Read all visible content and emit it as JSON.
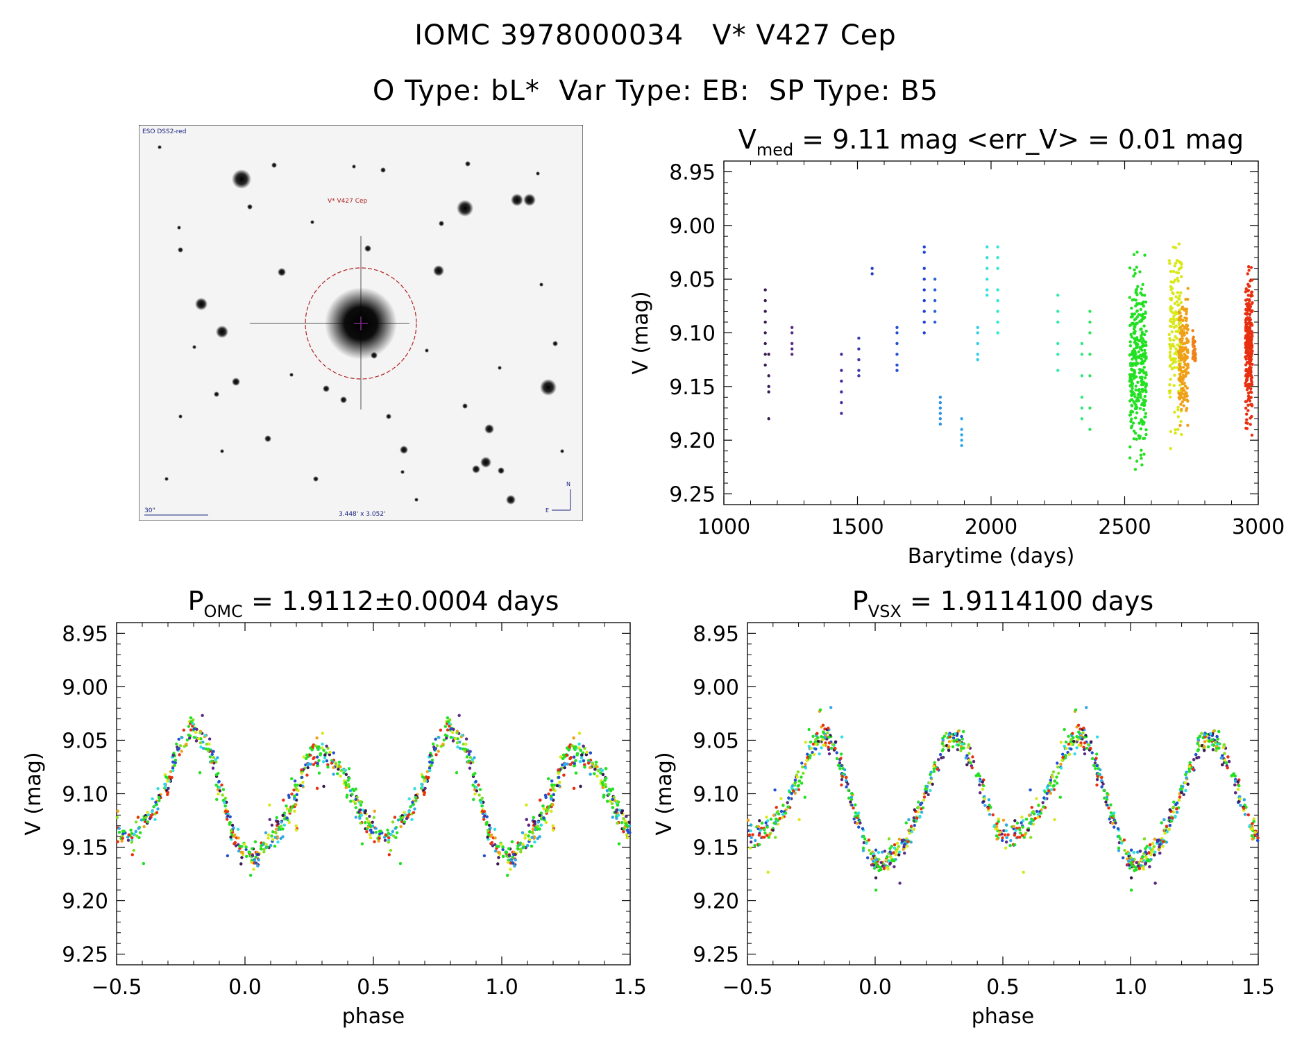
{
  "header": {
    "title_line1": "IOMC 3978000034   V* V427 Cep",
    "title_line2": "O Type: bL*  Var Type: EB:  SP Type: B5"
  },
  "sky_image": {
    "survey_label": "ESO DSS2-red",
    "target_label": "V* V427 Cep",
    "scale_label": "30\"",
    "size_label": "3.448' x 3.052'",
    "north_label": "N",
    "east_label": "E"
  },
  "chart_data": [
    {
      "type": "scatter",
      "id": "lightcurve",
      "title": "V_med = 9.11 mag <err_V> = 0.01 mag",
      "title_parts": {
        "main": "V",
        "sub": "med",
        "rest": " = 9.11 mag <err_V> = 0.01 mag"
      },
      "xlabel": "Barytime (days)",
      "ylabel": "V (mag)",
      "xlim": [
        1000,
        3000
      ],
      "ylim": [
        9.26,
        8.94
      ],
      "y_inverted": true,
      "xticks": [
        1000,
        1500,
        2000,
        2500,
        3000
      ],
      "xtick_labels": [
        "1000",
        "1500",
        "2000",
        "2500",
        "3000"
      ],
      "yticks": [
        8.95,
        9.0,
        9.05,
        9.1,
        9.15,
        9.2,
        9.25
      ],
      "ytick_labels": [
        "8.95",
        "9.00",
        "9.05",
        "9.10",
        "9.15",
        "9.20",
        "9.25"
      ],
      "grid": false,
      "groups": [
        {
          "t": 1155,
          "color": "#3a1a52",
          "v": [
            9.06,
            9.07,
            9.08,
            9.09,
            9.1,
            9.11,
            9.12,
            9.13
          ]
        },
        {
          "t": 1168,
          "color": "#3a1a52",
          "v": [
            9.12,
            9.14,
            9.15,
            9.155,
            9.18
          ]
        },
        {
          "t": 1255,
          "color": "#5a2a82",
          "v": [
            9.095,
            9.1,
            9.11,
            9.115,
            9.12
          ]
        },
        {
          "t": 1440,
          "color": "#4b2aa0",
          "v": [
            9.12,
            9.135,
            9.145,
            9.155,
            9.165,
            9.175
          ]
        },
        {
          "t": 1505,
          "color": "#3a3aa8",
          "v": [
            9.105,
            9.115,
            9.125,
            9.135,
            9.14
          ]
        },
        {
          "t": 1555,
          "color": "#2840c0",
          "v": [
            9.04,
            9.045
          ]
        },
        {
          "t": 1648,
          "color": "#2050d0",
          "v": [
            9.095,
            9.1,
            9.11,
            9.12,
            9.13,
            9.135
          ]
        },
        {
          "t": 1750,
          "color": "#1a40d8",
          "v": [
            9.02,
            9.025,
            9.04,
            9.05,
            9.06,
            9.07,
            9.08,
            9.09,
            9.1
          ]
        },
        {
          "t": 1790,
          "color": "#2a60d8",
          "v": [
            9.05,
            9.06,
            9.07,
            9.08,
            9.09
          ]
        },
        {
          "t": 1810,
          "color": "#2a90e0",
          "v": [
            9.16,
            9.165,
            9.17,
            9.175,
            9.18,
            9.185
          ]
        },
        {
          "t": 1890,
          "color": "#30a8e8",
          "v": [
            9.18,
            9.19,
            9.195,
            9.2,
            9.205
          ]
        },
        {
          "t": 1950,
          "color": "#30d0e8",
          "v": [
            9.095,
            9.1,
            9.11,
            9.12,
            9.125
          ]
        },
        {
          "t": 1985,
          "color": "#30e0e0",
          "v": [
            9.02,
            9.03,
            9.04,
            9.05,
            9.06,
            9.065
          ]
        },
        {
          "t": 2025,
          "color": "#30e8d0",
          "v": [
            9.02,
            9.03,
            9.04,
            9.06,
            9.07,
            9.08,
            9.09,
            9.1
          ]
        },
        {
          "t": 2250,
          "color": "#30e8b0",
          "v": [
            9.065,
            9.08,
            9.09,
            9.11,
            9.12,
            9.135
          ]
        },
        {
          "t": 2340,
          "color": "#30e880",
          "v": [
            9.11,
            9.12,
            9.14,
            9.16,
            9.17,
            9.18
          ]
        },
        {
          "t": 2370,
          "color": "#30e060",
          "v": [
            9.08,
            9.09,
            9.1,
            9.12,
            9.14,
            9.17,
            9.19
          ]
        },
        {
          "t": 2550,
          "color": "#22e022",
          "spread": 24,
          "range": [
            9.01,
            9.25
          ],
          "n": 320
        },
        {
          "t": 2690,
          "color": "#d8e818",
          "spread": 18,
          "range": [
            8.975,
            9.225
          ],
          "n": 160
        },
        {
          "t": 2720,
          "color": "#f0a018",
          "spread": 14,
          "range": [
            9.04,
            9.2
          ],
          "n": 180
        },
        {
          "t": 2760,
          "color": "#f08018",
          "spread": 4,
          "range": [
            9.09,
            9.14
          ],
          "n": 30
        },
        {
          "t": 2965,
          "color": "#e83010",
          "spread": 10,
          "range": [
            9.025,
            9.205
          ],
          "n": 260
        }
      ]
    },
    {
      "type": "scatter",
      "id": "phase_omc",
      "title_parts": {
        "main": "P",
        "sub": "OMC",
        "rest": " = 1.9112±0.0004 days"
      },
      "xlabel": "phase",
      "ylabel": "V (mag)",
      "xlim": [
        -0.5,
        1.5
      ],
      "ylim": [
        9.26,
        8.94
      ],
      "y_inverted": true,
      "xticks": [
        -0.5,
        0.0,
        0.5,
        1.0,
        1.5
      ],
      "xtick_labels": [
        "−0.5",
        "0.0",
        "0.5",
        "1.0",
        "1.5"
      ],
      "yticks": [
        8.95,
        9.0,
        9.05,
        9.1,
        9.15,
        9.2,
        9.25
      ],
      "ytick_labels": [
        "8.95",
        "9.00",
        "9.05",
        "9.10",
        "9.15",
        "9.20",
        "9.25"
      ],
      "grid": false,
      "curve": [
        [
          0.0,
          9.16
        ],
        [
          0.05,
          9.16
        ],
        [
          0.1,
          9.14
        ],
        [
          0.15,
          9.125
        ],
        [
          0.2,
          9.1
        ],
        [
          0.25,
          9.065
        ],
        [
          0.3,
          9.06
        ],
        [
          0.35,
          9.07
        ],
        [
          0.4,
          9.09
        ],
        [
          0.45,
          9.12
        ],
        [
          0.5,
          9.135
        ],
        [
          0.55,
          9.14
        ],
        [
          0.6,
          9.13
        ],
        [
          0.65,
          9.115
        ],
        [
          0.7,
          9.09
        ],
        [
          0.75,
          9.05
        ],
        [
          0.8,
          9.04
        ],
        [
          0.85,
          9.055
        ],
        [
          0.9,
          9.09
        ],
        [
          0.95,
          9.135
        ],
        [
          1.0,
          9.16
        ]
      ]
    },
    {
      "type": "scatter",
      "id": "phase_vsx",
      "title_parts": {
        "main": "P",
        "sub": "VSX",
        "rest": " = 1.9114100 days"
      },
      "xlabel": "phase",
      "ylabel": "V (mag)",
      "xlim": [
        -0.5,
        1.5
      ],
      "ylim": [
        9.26,
        8.94
      ],
      "y_inverted": true,
      "xticks": [
        -0.5,
        0.0,
        0.5,
        1.0,
        1.5
      ],
      "xtick_labels": [
        "−0.5",
        "0.0",
        "0.5",
        "1.0",
        "1.5"
      ],
      "yticks": [
        8.95,
        9.0,
        9.05,
        9.1,
        9.15,
        9.2,
        9.25
      ],
      "ytick_labels": [
        "8.95",
        "9.00",
        "9.05",
        "9.10",
        "9.15",
        "9.20",
        "9.25"
      ],
      "grid": false,
      "curve": [
        [
          0.0,
          9.165
        ],
        [
          0.05,
          9.165
        ],
        [
          0.1,
          9.15
        ],
        [
          0.15,
          9.13
        ],
        [
          0.2,
          9.1
        ],
        [
          0.25,
          9.065
        ],
        [
          0.3,
          9.045
        ],
        [
          0.35,
          9.055
        ],
        [
          0.4,
          9.085
        ],
        [
          0.45,
          9.12
        ],
        [
          0.5,
          9.14
        ],
        [
          0.55,
          9.14
        ],
        [
          0.6,
          9.13
        ],
        [
          0.65,
          9.11
        ],
        [
          0.7,
          9.09
        ],
        [
          0.75,
          9.055
        ],
        [
          0.8,
          9.045
        ],
        [
          0.85,
          9.06
        ],
        [
          0.9,
          9.1
        ],
        [
          0.95,
          9.14
        ],
        [
          1.0,
          9.165
        ]
      ]
    }
  ]
}
